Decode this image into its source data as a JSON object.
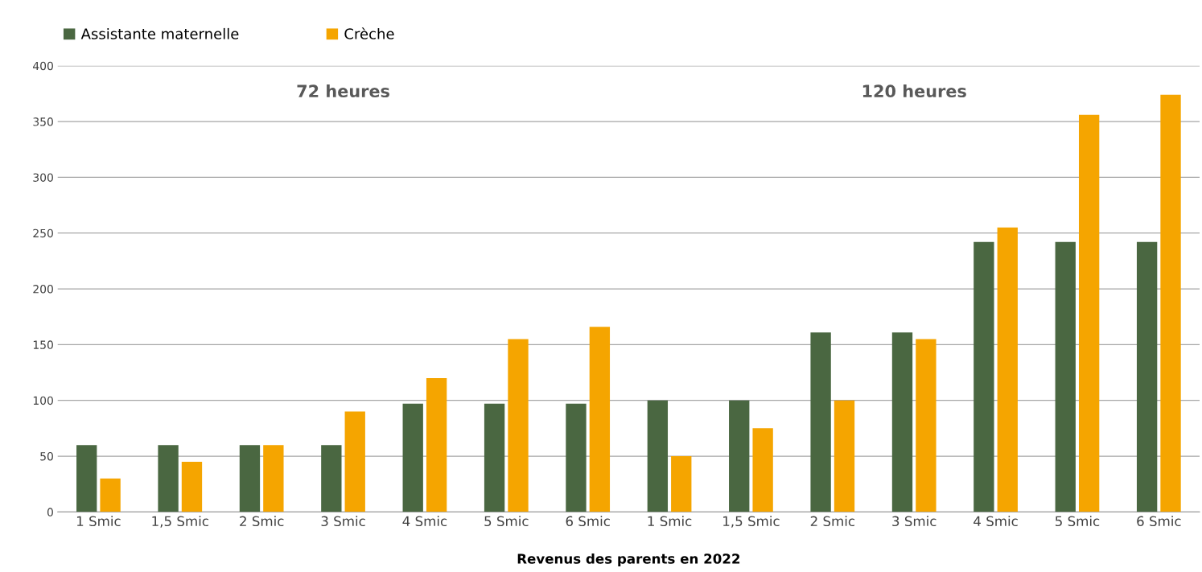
{
  "chart_data": {
    "type": "bar",
    "xlabel": "Revenus des parents en 2022",
    "categories": [
      "1 Smic",
      "1,5 Smic",
      "2 Smic",
      "3 Smic",
      "4 Smic",
      "5 Smic",
      "6 Smic",
      "1 Smic",
      "1,5 Smic",
      "2 Smic",
      "3 Smic",
      "4 Smic",
      "5 Smic",
      "6 Smic"
    ],
    "series": [
      {
        "name": "Assistante maternelle",
        "color": "#4a6741",
        "values": [
          60,
          60,
          60,
          60,
          97,
          97,
          97,
          100,
          100,
          161,
          161,
          242,
          242,
          242
        ]
      },
      {
        "name": "Crèche",
        "color": "#f5a500",
        "values": [
          30,
          45,
          60,
          90,
          120,
          155,
          166,
          50,
          75,
          100,
          155,
          255,
          356,
          374
        ]
      }
    ],
    "annotations": [
      "72 heures",
      "120 heures"
    ],
    "ylim": [
      0,
      400
    ],
    "yticks": [
      0,
      50,
      100,
      150,
      200,
      250,
      300,
      350,
      400
    ],
    "grid": "y",
    "legend": "top left"
  }
}
